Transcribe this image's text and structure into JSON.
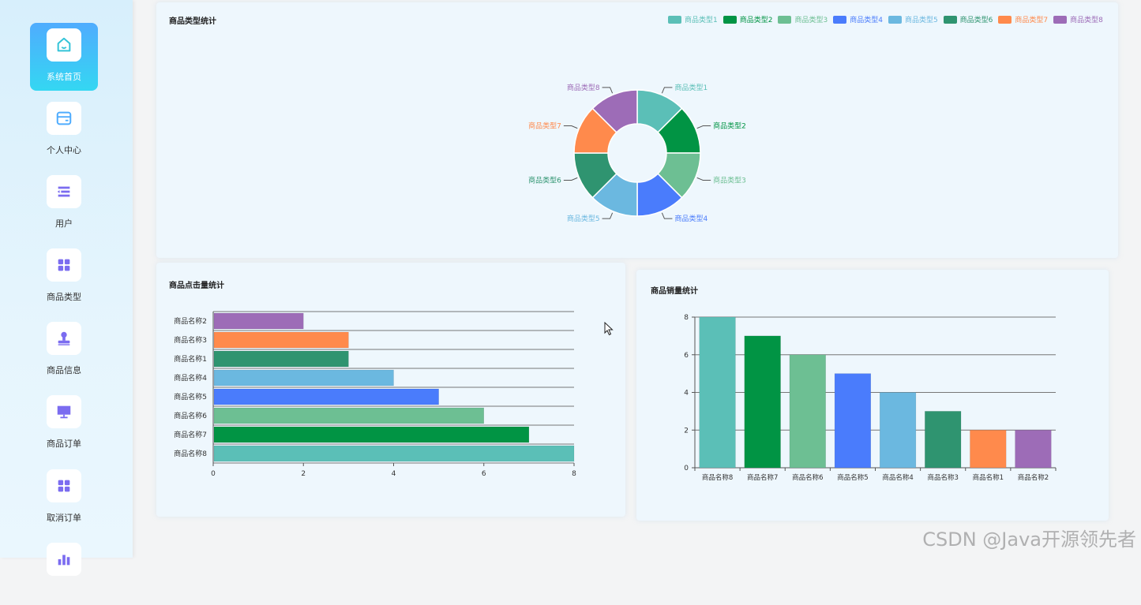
{
  "sidebar": {
    "items": [
      {
        "label": "系统首页",
        "icon": "home-icon",
        "active": true
      },
      {
        "label": "个人中心",
        "icon": "wallet-icon",
        "active": false
      },
      {
        "label": "用户",
        "icon": "user-list-icon",
        "active": false
      },
      {
        "label": "商品类型",
        "icon": "grid-icon",
        "active": false
      },
      {
        "label": "商品信息",
        "icon": "stamp-icon",
        "active": false
      },
      {
        "label": "商品订单",
        "icon": "monitor-icon",
        "active": false
      },
      {
        "label": "取消订单",
        "icon": "grid-icon",
        "active": false
      }
    ]
  },
  "panels": {
    "type_stats": {
      "title": "商品类型统计"
    },
    "click_stats": {
      "title": "商品点击量统计"
    },
    "sales_stats": {
      "title": "商品销量统计"
    }
  },
  "colors": [
    "#5bbfb7",
    "#019444",
    "#6dbf93",
    "#4a7cfc",
    "#6bb8e0",
    "#2f9470",
    "#ff8a4c",
    "#9d6cb7"
  ],
  "chart_data": [
    {
      "type": "pie",
      "title": "商品类型统计",
      "donut": true,
      "legend": "top-right",
      "categories": [
        "商品类型1",
        "商品类型2",
        "商品类型3",
        "商品类型4",
        "商品类型5",
        "商品类型6",
        "商品类型7",
        "商品类型8"
      ],
      "values": [
        1,
        1,
        1,
        1,
        1,
        1,
        1,
        1
      ]
    },
    {
      "type": "bar",
      "orientation": "horizontal",
      "title": "商品点击量统计",
      "categories": [
        "商品名称2",
        "商品名称3",
        "商品名称1",
        "商品名称4",
        "商品名称5",
        "商品名称6",
        "商品名称7",
        "商品名称8"
      ],
      "values": [
        2,
        3,
        3,
        4,
        5,
        6,
        7,
        8
      ],
      "color_index": [
        7,
        6,
        5,
        4,
        3,
        2,
        1,
        0
      ],
      "xlim": [
        0,
        8
      ],
      "ticks": [
        0,
        2,
        4,
        6,
        8
      ],
      "grid": true
    },
    {
      "type": "bar",
      "orientation": "vertical",
      "title": "商品销量统计",
      "categories": [
        "商品名称8",
        "商品名称7",
        "商品名称6",
        "商品名称5",
        "商品名称4",
        "商品名称3",
        "商品名称1",
        "商品名称2"
      ],
      "values": [
        8,
        7,
        6,
        5,
        4,
        3,
        2,
        2
      ],
      "color_index": [
        0,
        1,
        2,
        3,
        4,
        5,
        6,
        7
      ],
      "ylim": [
        0,
        8
      ],
      "ticks": [
        0,
        2,
        4,
        6,
        8
      ],
      "grid": true
    }
  ],
  "watermark": "CSDN @Java开源领先者"
}
